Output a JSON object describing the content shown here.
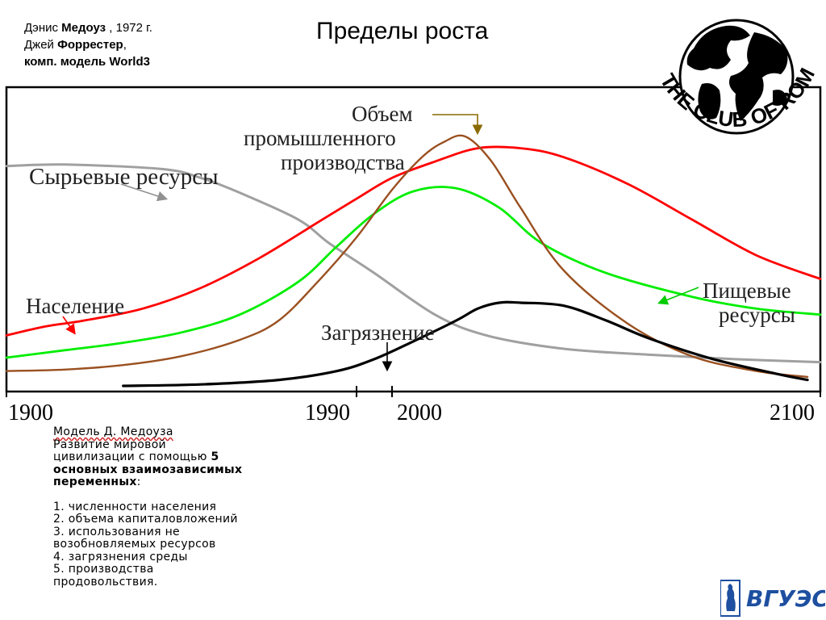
{
  "authors": {
    "line1_pre": "Дэнис ",
    "line1_bold": "Медоуз",
    "line1_post": " , 1972 г.",
    "line2_pre": "Джей ",
    "line2_bold": "Форрестер",
    "line2_post": ",",
    "line3": "комп. модель World3"
  },
  "title": "Пределы роста",
  "logo": {
    "text": "THE CLUB OF ROME",
    "icon": "globe-icon"
  },
  "chart_data": {
    "type": "line",
    "title": "",
    "xlabel": "",
    "ylabel": "",
    "x_ticks": [
      "1900",
      "1990",
      "2000",
      "2100"
    ],
    "grid": false,
    "series": [
      {
        "name": "Сырьевые ресурсы",
        "color": "#a0a0a0",
        "x": [
          1900,
          1915,
          1940,
          1950,
          1960,
          1975,
          1983,
          1995,
          2010,
          2022,
          2040,
          2060,
          2080,
          2100
        ],
        "y": [
          0.74,
          0.745,
          0.73,
          0.7,
          0.65,
          0.56,
          0.48,
          0.38,
          0.24,
          0.17,
          0.125,
          0.105,
          0.09,
          0.08
        ]
      },
      {
        "name": "Население",
        "color": "#ff0000",
        "x": [
          1900,
          1910,
          1920,
          1935,
          1950,
          1965,
          1980,
          1990,
          2000,
          2010,
          2020,
          2030,
          2040,
          2055,
          2070,
          2085,
          2100
        ],
        "y": [
          0.17,
          0.2,
          0.22,
          0.26,
          0.33,
          0.43,
          0.55,
          0.63,
          0.7,
          0.755,
          0.8,
          0.8,
          0.77,
          0.68,
          0.56,
          0.44,
          0.36
        ]
      },
      {
        "name": "Пищевые ресурсы",
        "color": "#00ee00",
        "x": [
          1900,
          1915,
          1930,
          1945,
          1960,
          1975,
          1985,
          1995,
          2005,
          2015,
          2025,
          2035,
          2050,
          2070,
          2085,
          2100
        ],
        "y": [
          0.095,
          0.12,
          0.145,
          0.18,
          0.24,
          0.35,
          0.47,
          0.58,
          0.655,
          0.665,
          0.6,
          0.48,
          0.38,
          0.3,
          0.26,
          0.24
        ]
      },
      {
        "name": "Объем промышленного производства",
        "color": "#9a5020",
        "x": [
          1900,
          1915,
          1930,
          1945,
          1960,
          1970,
          1980,
          1990,
          2000,
          2007,
          2012,
          2017,
          2023,
          2030,
          2040,
          2055,
          2070,
          2085,
          2097
        ],
        "y": [
          0.05,
          0.055,
          0.07,
          0.1,
          0.155,
          0.22,
          0.35,
          0.5,
          0.66,
          0.77,
          0.82,
          0.84,
          0.76,
          0.6,
          0.39,
          0.21,
          0.1,
          0.05,
          0.03
        ]
      },
      {
        "name": "Загрязнение",
        "color": "#000000",
        "x": [
          1930,
          1950,
          1970,
          1985,
          1995,
          2005,
          2015,
          2020,
          2025,
          2030,
          2040,
          2050,
          2060,
          2075,
          2090,
          2097
        ],
        "y": [
          0.0,
          0.005,
          0.02,
          0.05,
          0.09,
          0.15,
          0.22,
          0.26,
          0.28,
          0.28,
          0.27,
          0.22,
          0.16,
          0.09,
          0.04,
          0.02
        ]
      }
    ]
  },
  "labels": {
    "industrial": [
      "Объем",
      "промышленного",
      "производства"
    ],
    "resources": "Сырьевые ресурсы",
    "population": "Население",
    "food": [
      "Пищевые",
      "ресурсы"
    ],
    "pollution": "Загрязнение"
  },
  "description": {
    "line1": "Модель Д. Медоуза",
    "line2": "Развитие мировой",
    "line3_pre": "цивилизации с помощью ",
    "line3_bold": "5",
    "line4": "основных взаимозависимых",
    "line5_bold": "переменных",
    "line5_post": ":",
    "items": [
      "1. численности населения",
      "2. объема капиталовложений",
      "3. использования не",
      "возобновляемых ресурсов",
      "4. загрязнения среды",
      "5. производства",
      "продовольствия."
    ]
  },
  "footer_logo_text": "ВГУЭС"
}
